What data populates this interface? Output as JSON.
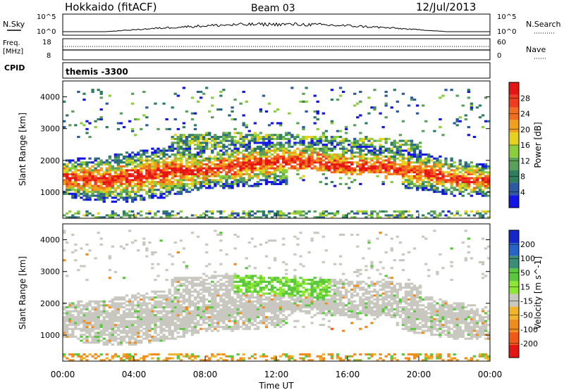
{
  "header": {
    "station": "Hokkaido (fitACF)",
    "beam": "Beam 03",
    "date": "12/Jul/2013"
  },
  "top_panels": {
    "nsky": {
      "label": "N.Sky",
      "yticks": [
        "10^5",
        "10^0"
      ],
      "right_label": "N.Search",
      "right_yticks": [
        "10^5",
        "10^0"
      ]
    },
    "freq": {
      "label_line1": "Freq.",
      "label_line2": "[MHz]",
      "yticks": [
        "18",
        "8"
      ],
      "right_label": "Nave",
      "right_yticks": [
        "60",
        "0"
      ]
    },
    "cpid": {
      "label": "CPID",
      "text": "themis -3300"
    }
  },
  "colorbars": {
    "power": {
      "label": "Power [dB]",
      "ticks": [
        "4",
        "8",
        "12",
        "16",
        "20",
        "24",
        "28"
      ],
      "colors": [
        "#1414e6",
        "#2d5aa0",
        "#2f7f5f",
        "#5aa05a",
        "#8ccd3c",
        "#e6d21e",
        "#f0a01e",
        "#f06e1e",
        "#f03c1e",
        "#e61414"
      ]
    },
    "velocity": {
      "label": "Velocity [m s^-1]",
      "ticks": [
        "200",
        "100",
        "50",
        "15",
        "-15",
        "-50",
        "-100",
        "-200"
      ],
      "colors": [
        "#1428c8",
        "#2864c8",
        "#3c8c78",
        "#5ac83c",
        "#8ce632",
        "#c8c8c0",
        "#f0b428",
        "#f08c1e",
        "#f05a14",
        "#e61414"
      ]
    }
  },
  "chart_data": [
    {
      "type": "heatmap",
      "panel": "power",
      "xlabel": "",
      "ylabel": "Slant Range [km]",
      "xlim": [
        0,
        24
      ],
      "ylim": [
        180,
        4500
      ],
      "yticks": [
        1000,
        2000,
        3000,
        4000
      ],
      "scatter_bands": [
        {
          "description": "main scatter",
          "points": [
            [
              0,
              1450,
              600
            ],
            [
              2,
              1400,
              700
            ],
            [
              4,
              1500,
              800
            ],
            [
              6,
              1650,
              800
            ],
            [
              8,
              1700,
              600
            ],
            [
              10,
              1850,
              700
            ],
            [
              12,
              1950,
              700
            ],
            [
              14,
              1950,
              700
            ],
            [
              16,
              1800,
              700
            ],
            [
              18,
              1800,
              600
            ],
            [
              20,
              1650,
              600
            ],
            [
              22,
              1450,
              600
            ],
            [
              24,
              1350,
              500
            ]
          ]
        },
        {
          "description": "upper band",
          "points": [
            [
              6,
              2500,
              300
            ],
            [
              9,
              2650,
              250
            ],
            [
              12,
              2550,
              300
            ],
            [
              15,
              2450,
              300
            ],
            [
              18,
              2400,
              300
            ],
            [
              20,
              2300,
              300
            ]
          ]
        }
      ]
    },
    {
      "type": "heatmap",
      "panel": "velocity",
      "xlabel": "Time UT",
      "ylabel": "Slant Range [km]",
      "xlim": [
        0,
        24
      ],
      "ylim": [
        180,
        4500
      ],
      "yticks": [
        1000,
        2000,
        3000,
        4000
      ],
      "xticks": [
        "00:00",
        "04:00",
        "08:00",
        "12:00",
        "16:00",
        "20:00",
        "00:00"
      ]
    }
  ]
}
